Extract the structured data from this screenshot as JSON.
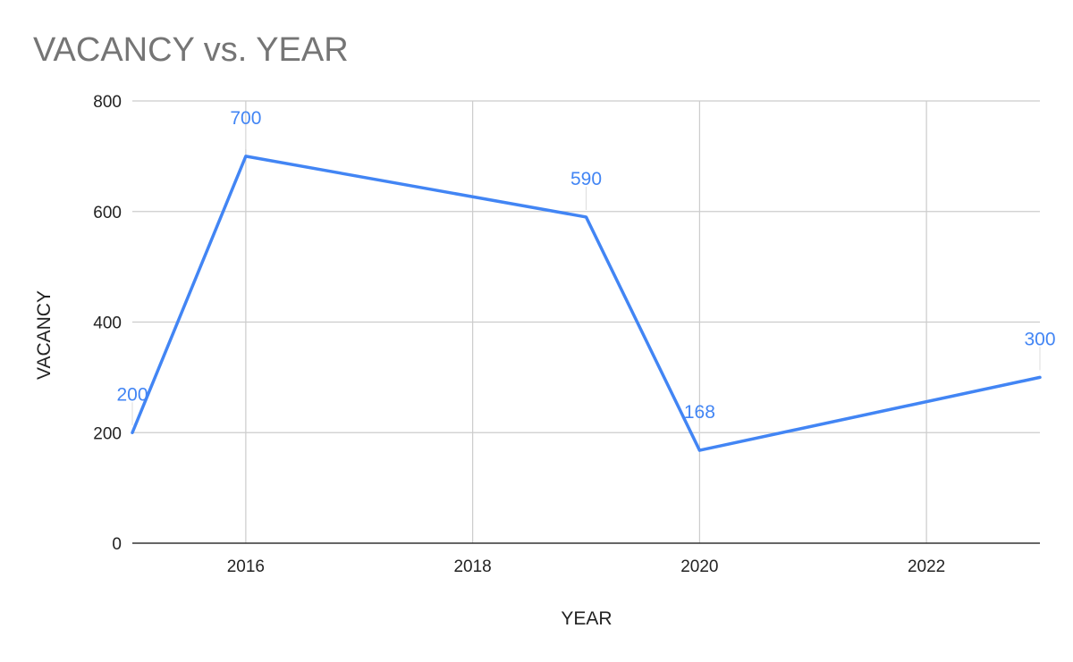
{
  "chart_data": {
    "type": "line",
    "title": "VACANCY vs. YEAR",
    "xlabel": "YEAR",
    "ylabel": "VACANCY",
    "x": [
      2015,
      2016,
      2019,
      2020,
      2023
    ],
    "series": [
      {
        "values": [
          200,
          700,
          590,
          168,
          300
        ],
        "color": "#4285f4"
      }
    ],
    "data_labels": [
      "200",
      "700",
      "590",
      "168",
      "300"
    ],
    "xlim": [
      2015,
      2023
    ],
    "ylim": [
      0,
      800
    ],
    "x_ticks": [
      2016,
      2018,
      2020,
      2022
    ],
    "x_tick_labels": [
      "2016",
      "2018",
      "2020",
      "2022"
    ],
    "y_ticks": [
      0,
      200,
      400,
      600,
      800
    ],
    "y_tick_labels": [
      "0",
      "200",
      "400",
      "600",
      "800"
    ],
    "grid": true,
    "legend": "none"
  }
}
